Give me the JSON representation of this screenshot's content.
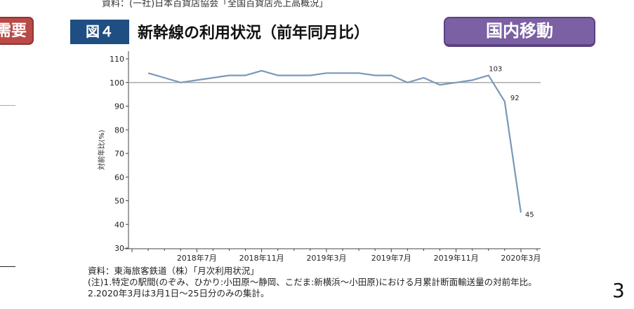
{
  "header": {
    "source_top": "資料：(一社)日本百貨店協会「全国百貨店売上高概況」",
    "side_badge": "需要",
    "figure_label": "図４",
    "figure_title": "新幹線の利用状況（前年同月比）",
    "category_badge": "国内移動",
    "colors": {
      "figure_label_bg": "#1f4e82",
      "category_badge_bg": "#7b60a3",
      "side_badge_bg": "#b94a47",
      "line": "#7b98b8",
      "reference_line": "#aaaaaa"
    }
  },
  "chart_data": {
    "type": "line",
    "title": "新幹線の利用状況（前年同月比）",
    "xlabel": "",
    "ylabel": "対前年比(%)",
    "ylim": [
      30,
      110
    ],
    "yticks": [
      30,
      40,
      50,
      60,
      70,
      80,
      90,
      100,
      110
    ],
    "x_tick_labels": [
      "2018年7月",
      "2018年11月",
      "2019年3月",
      "2019年7月",
      "2019年11月",
      "2020年3月"
    ],
    "reference_line": 100,
    "grid": false,
    "legend": null,
    "x": [
      "2018年4月",
      "2018年5月",
      "2018年6月",
      "2018年7月",
      "2018年8月",
      "2018年9月",
      "2018年10月",
      "2018年11月",
      "2018年12月",
      "2019年1月",
      "2019年2月",
      "2019年3月",
      "2019年4月",
      "2019年5月",
      "2019年6月",
      "2019年7月",
      "2019年8月",
      "2019年9月",
      "2019年10月",
      "2019年11月",
      "2019年12月",
      "2020年1月",
      "2020年2月",
      "2020年3月"
    ],
    "series": [
      {
        "name": "対前年比",
        "values": [
          104,
          102,
          100,
          101,
          102,
          103,
          103,
          105,
          103,
          103,
          103,
          104,
          104,
          104,
          103,
          103,
          100,
          102,
          99,
          100,
          101,
          103,
          92,
          45
        ]
      }
    ],
    "annotations": [
      {
        "x": "2020年1月",
        "label": "103"
      },
      {
        "x": "2020年2月",
        "label": "92"
      },
      {
        "x": "2020年3月",
        "label": "45"
      }
    ]
  },
  "footer": {
    "source": "資料：東海旅客鉄道（株）「月次利用状況」",
    "note1": "(注)1.特定の駅間(のぞみ、ひかり:小田原～静岡、こだま:新横浜～小田原)における月累計断面輸送量の対前年比。",
    "note2": "2.2020年3月は3月1日～25日分のみの集計。"
  },
  "page_number": "3"
}
